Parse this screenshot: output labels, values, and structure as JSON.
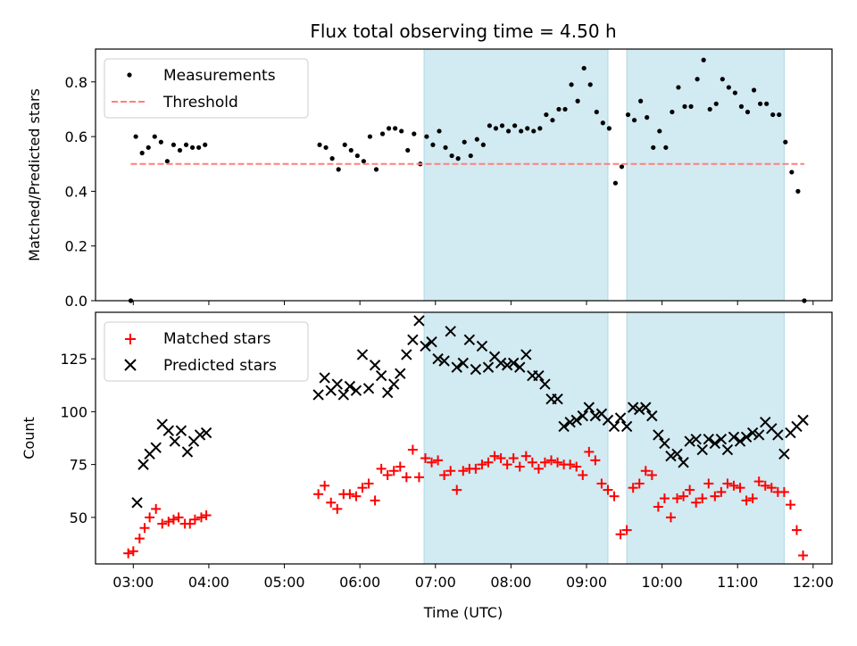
{
  "chart_data": [
    {
      "type": "scatter",
      "title": "Flux total observing time = 4.50 h",
      "xlabel": "",
      "ylabel": "Matched/Predicted stars",
      "xlim": [
        "02:30",
        "12:15"
      ],
      "ylim": [
        0,
        0.92
      ],
      "x_ticks": [
        "03:00",
        "04:00",
        "05:00",
        "06:00",
        "07:00",
        "08:00",
        "09:00",
        "10:00",
        "11:00",
        "12:00"
      ],
      "y_ticks": [
        0.0,
        0.2,
        0.4,
        0.6,
        0.8
      ],
      "y_tick_labels": [
        "0.0",
        "0.2",
        "0.4",
        "0.6",
        "0.8"
      ],
      "legend": {
        "position": "top-left",
        "entries": [
          "Measurements",
          "Threshold"
        ]
      },
      "shaded_regions": [
        {
          "start": "06:51",
          "end": "09:17",
          "color": "#add8e6"
        },
        {
          "start": "09:32",
          "end": "11:37",
          "color": "#add8e6"
        }
      ],
      "colors": {
        "measurements": "#000000",
        "threshold": "#ff7f7f",
        "shade": "#add8e6"
      },
      "series": [
        {
          "name": "Measurements",
          "marker": "dot",
          "x": [
            "02:58",
            "03:02",
            "03:07",
            "03:12",
            "03:17",
            "03:22",
            "03:27",
            "03:32",
            "03:37",
            "03:42",
            "03:47",
            "03:52",
            "03:57",
            "05:28",
            "05:33",
            "05:38",
            "05:43",
            "05:48",
            "05:53",
            "05:58",
            "06:03",
            "06:08",
            "06:13",
            "06:18",
            "06:23",
            "06:28",
            "06:33",
            "06:38",
            "06:43",
            "06:48",
            "06:53",
            "06:58",
            "07:03",
            "07:08",
            "07:13",
            "07:18",
            "07:23",
            "07:28",
            "07:33",
            "07:38",
            "07:43",
            "07:48",
            "07:53",
            "07:58",
            "08:03",
            "08:08",
            "08:13",
            "08:18",
            "08:23",
            "08:28",
            "08:33",
            "08:38",
            "08:43",
            "08:48",
            "08:53",
            "08:58",
            "09:03",
            "09:08",
            "09:13",
            "09:18",
            "09:23",
            "09:28",
            "09:33",
            "09:38",
            "09:43",
            "09:48",
            "09:53",
            "09:58",
            "10:03",
            "10:08",
            "10:13",
            "10:18",
            "10:23",
            "10:28",
            "10:33",
            "10:38",
            "10:43",
            "10:48",
            "10:53",
            "10:58",
            "11:03",
            "11:08",
            "11:13",
            "11:18",
            "11:23",
            "11:28",
            "11:33",
            "11:38",
            "11:43",
            "11:48",
            "11:53"
          ],
          "y": [
            0.0,
            0.6,
            0.54,
            0.56,
            0.6,
            0.58,
            0.51,
            0.57,
            0.55,
            0.57,
            0.56,
            0.56,
            0.57,
            0.57,
            0.56,
            0.52,
            0.48,
            0.57,
            0.55,
            0.53,
            0.51,
            0.6,
            0.48,
            0.61,
            0.63,
            0.63,
            0.62,
            0.55,
            0.61,
            0.5,
            0.6,
            0.57,
            0.62,
            0.56,
            0.53,
            0.52,
            0.58,
            0.53,
            0.59,
            0.57,
            0.64,
            0.63,
            0.64,
            0.62,
            0.64,
            0.62,
            0.63,
            0.62,
            0.63,
            0.68,
            0.66,
            0.7,
            0.7,
            0.79,
            0.73,
            0.85,
            0.79,
            0.69,
            0.65,
            0.63,
            0.43,
            0.49,
            0.68,
            0.66,
            0.73,
            0.67,
            0.56,
            0.62,
            0.56,
            0.69,
            0.78,
            0.71,
            0.71,
            0.81,
            0.88,
            0.7,
            0.72,
            0.81,
            0.78,
            0.76,
            0.71,
            0.69,
            0.77,
            0.72,
            0.72,
            0.68,
            0.68,
            0.58,
            0.47,
            0.4,
            0.0
          ]
        },
        {
          "name": "Threshold",
          "marker": "dashed-line",
          "x": [
            "02:58",
            "11:53"
          ],
          "y": [
            0.5,
            0.5
          ]
        }
      ]
    },
    {
      "type": "scatter",
      "title": "",
      "xlabel": "Time (UTC)",
      "ylabel": "Count",
      "xlim": [
        "02:30",
        "12:15"
      ],
      "ylim": [
        28,
        147
      ],
      "x_ticks": [
        "03:00",
        "04:00",
        "05:00",
        "06:00",
        "07:00",
        "08:00",
        "09:00",
        "10:00",
        "11:00",
        "12:00"
      ],
      "y_ticks": [
        50,
        75,
        100,
        125
      ],
      "y_tick_labels": [
        "50",
        "75",
        "100",
        "125"
      ],
      "legend": {
        "position": "top-left",
        "entries": [
          "Matched stars",
          "Predicted stars"
        ]
      },
      "shaded_regions": [
        {
          "start": "06:51",
          "end": "09:17",
          "color": "#add8e6"
        },
        {
          "start": "09:32",
          "end": "11:37",
          "color": "#add8e6"
        }
      ],
      "colors": {
        "matched": "#ff0000",
        "predicted": "#000000",
        "shade": "#add8e6"
      },
      "series": [
        {
          "name": "Matched stars",
          "marker": "plus",
          "x": [
            "02:56",
            "03:00",
            "03:05",
            "03:09",
            "03:13",
            "03:18",
            "03:23",
            "03:28",
            "03:32",
            "03:36",
            "03:41",
            "03:45",
            "03:49",
            "03:54",
            "03:58",
            "05:27",
            "05:32",
            "05:37",
            "05:42",
            "05:47",
            "05:52",
            "05:57",
            "06:02",
            "06:07",
            "06:12",
            "06:17",
            "06:22",
            "06:27",
            "06:32",
            "06:37",
            "06:42",
            "06:47",
            "06:52",
            "06:57",
            "07:02",
            "07:07",
            "07:12",
            "07:17",
            "07:22",
            "07:27",
            "07:32",
            "07:37",
            "07:42",
            "07:47",
            "07:52",
            "07:57",
            "08:02",
            "08:07",
            "08:12",
            "08:17",
            "08:22",
            "08:27",
            "08:32",
            "08:37",
            "08:42",
            "08:47",
            "08:52",
            "08:57",
            "09:02",
            "09:07",
            "09:12",
            "09:17",
            "09:22",
            "09:27",
            "09:32",
            "09:37",
            "09:42",
            "09:47",
            "09:52",
            "09:57",
            "10:02",
            "10:07",
            "10:12",
            "10:17",
            "10:22",
            "10:27",
            "10:32",
            "10:37",
            "10:42",
            "10:47",
            "10:52",
            "10:57",
            "11:02",
            "11:07",
            "11:12",
            "11:17",
            "11:22",
            "11:27",
            "11:32",
            "11:37",
            "11:42",
            "11:47",
            "11:52"
          ],
          "y": [
            33,
            34,
            40,
            45,
            50,
            54,
            47,
            48,
            49,
            50,
            47,
            47,
            49,
            50,
            51,
            61,
            65,
            57,
            54,
            61,
            61,
            60,
            64,
            66,
            58,
            73,
            70,
            72,
            74,
            69,
            82,
            69,
            78,
            76,
            77,
            70,
            72,
            63,
            72,
            73,
            73,
            75,
            76,
            79,
            78,
            75,
            78,
            74,
            79,
            76,
            73,
            76,
            77,
            76,
            75,
            75,
            74,
            70,
            81,
            77,
            66,
            63,
            60,
            42,
            44,
            64,
            66,
            72,
            70,
            55,
            59,
            50,
            59,
            60,
            63,
            57,
            59,
            66,
            60,
            62,
            66,
            65,
            64,
            58,
            59,
            67,
            65,
            64,
            62,
            62,
            56,
            44,
            32
          ]
        },
        {
          "name": "Predicted stars",
          "marker": "x",
          "x": [
            "03:03",
            "03:08",
            "03:13",
            "03:18",
            "03:23",
            "03:28",
            "03:33",
            "03:38",
            "03:43",
            "03:48",
            "03:53",
            "03:58",
            "05:27",
            "05:32",
            "05:37",
            "05:42",
            "05:47",
            "05:52",
            "05:57",
            "06:02",
            "06:07",
            "06:12",
            "06:17",
            "06:22",
            "06:27",
            "06:32",
            "06:37",
            "06:42",
            "06:47",
            "06:52",
            "06:57",
            "07:02",
            "07:07",
            "07:12",
            "07:17",
            "07:22",
            "07:27",
            "07:32",
            "07:37",
            "07:42",
            "07:47",
            "07:52",
            "07:57",
            "08:02",
            "08:07",
            "08:12",
            "08:17",
            "08:22",
            "08:27",
            "08:32",
            "08:37",
            "08:42",
            "08:47",
            "08:52",
            "08:57",
            "09:02",
            "09:07",
            "09:12",
            "09:17",
            "09:22",
            "09:27",
            "09:32",
            "09:37",
            "09:42",
            "09:47",
            "09:52",
            "09:57",
            "10:02",
            "10:07",
            "10:12",
            "10:17",
            "10:22",
            "10:27",
            "10:32",
            "10:37",
            "10:42",
            "10:47",
            "10:52",
            "10:57",
            "11:02",
            "11:07",
            "11:12",
            "11:17",
            "11:22",
            "11:27",
            "11:32",
            "11:37",
            "11:42",
            "11:47",
            "11:52"
          ],
          "y": [
            57,
            75,
            80,
            83,
            94,
            91,
            86,
            91,
            81,
            86,
            89,
            90,
            108,
            116,
            110,
            113,
            108,
            112,
            110,
            127,
            111,
            122,
            117,
            109,
            113,
            118,
            127,
            134,
            143,
            131,
            133,
            125,
            124,
            138,
            121,
            123,
            134,
            120,
            131,
            121,
            126,
            123,
            122,
            123,
            121,
            127,
            117,
            117,
            113,
            106,
            106,
            93,
            95,
            96,
            98,
            102,
            98,
            99,
            96,
            93,
            97,
            93,
            102,
            101,
            102,
            98,
            89,
            85,
            79,
            80,
            76,
            86,
            87,
            82,
            87,
            85,
            87,
            82,
            88,
            86,
            88,
            90,
            89,
            95,
            92,
            89,
            80,
            90,
            93,
            96
          ]
        }
      ]
    }
  ]
}
